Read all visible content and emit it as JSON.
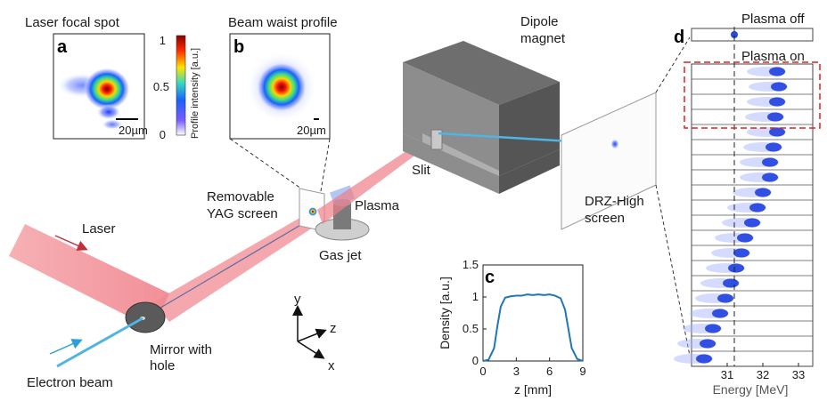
{
  "labels": {
    "laser_focal_spot": "Laser focal spot",
    "beam_waist_profile": "Beam waist profile",
    "panel_a": "a",
    "panel_b": "b",
    "panel_c": "c",
    "panel_d": "d",
    "scale_a": "20µm",
    "scale_b": "20µm",
    "colorbar_label": "Profile intensity [a.u.]",
    "colorbar_ticks": [
      "1",
      "0.5",
      "0"
    ],
    "dipole_magnet_1": "Dipole",
    "dipole_magnet_2": "magnet",
    "slit": "Slit",
    "plasma": "Plasma",
    "removable_1": "Removable",
    "removable_2": "YAG screen",
    "gas_jet": "Gas jet",
    "laser": "Laser",
    "mirror_1": "Mirror with",
    "mirror_2": "hole",
    "electron_beam": "Electron beam",
    "drz_1": "DRZ-High",
    "drz_2": "screen",
    "plasma_off": "Plasma off",
    "plasma_on": "Plasma on",
    "axis_y": "y",
    "axis_z": "z",
    "axis_x": "x"
  },
  "chart_data": [
    {
      "type": "line",
      "panel": "c",
      "xlabel": "z [mm]",
      "ylabel": "Density  [a.u.]",
      "xlim": [
        0,
        9
      ],
      "ylim": [
        0,
        1.5
      ],
      "xticks": [
        "0",
        "3",
        "6",
        "9"
      ],
      "yticks": [
        "0",
        "0.5",
        "1",
        "1.5"
      ],
      "series": [
        {
          "x": [
            0,
            0.5,
            1.0,
            1.3,
            1.6,
            2.0,
            2.5,
            3.0,
            3.5,
            4.0,
            4.5,
            5.0,
            5.5,
            6.0,
            6.5,
            7.0,
            7.4,
            7.7,
            8.0,
            8.5,
            9.0
          ],
          "values": [
            0.0,
            0.02,
            0.2,
            0.55,
            0.85,
            0.99,
            1.01,
            1.02,
            1.02,
            1.04,
            1.03,
            1.04,
            1.03,
            1.04,
            1.02,
            0.98,
            0.8,
            0.5,
            0.2,
            0.03,
            0.0
          ],
          "color": "#1f77b4"
        }
      ]
    },
    {
      "type": "heatmap",
      "panel": "d",
      "xlabel": "Energy [MeV]",
      "xlim": [
        30.0,
        33.4
      ],
      "xticks": [
        "31",
        "32",
        "33"
      ],
      "reference_line": 31.2,
      "plasma_off_peak": 31.2,
      "plasma_on_peaks": [
        32.4,
        32.45,
        32.4,
        32.35,
        32.4,
        32.3,
        32.2,
        32.2,
        32.0,
        31.85,
        31.7,
        31.5,
        31.4,
        31.25,
        31.1,
        30.95,
        30.8,
        30.6,
        30.45,
        30.35
      ]
    }
  ]
}
